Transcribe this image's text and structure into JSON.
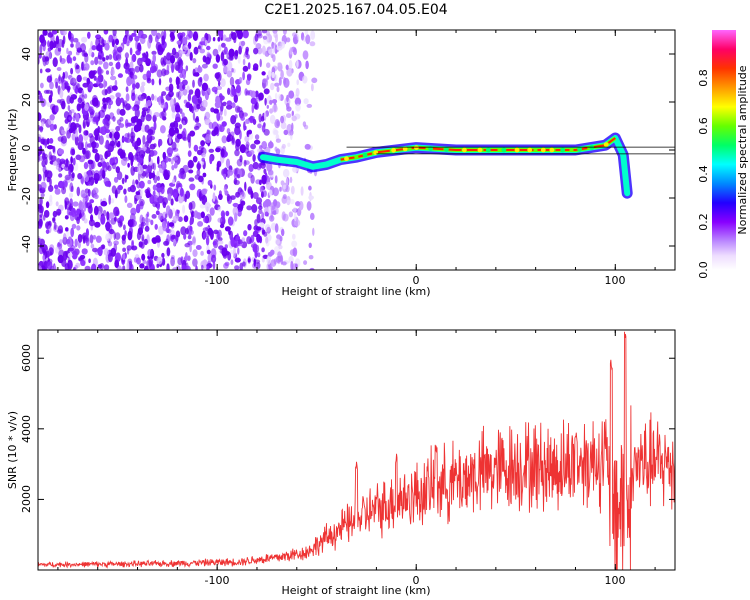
{
  "title": "C2E1.2025.167.04.05.E04",
  "colors": {
    "snr_line": "#ee3333",
    "tracking_line": "#000000",
    "colormap": [
      "#ff66ff",
      "#ff0066",
      "#ff3300",
      "#ff9900",
      "#ffff00",
      "#66ff00",
      "#00ff66",
      "#00ffff",
      "#0088ff",
      "#2200ff",
      "#8800ff",
      "#bb88ff",
      "#eeddff",
      "#ffffff"
    ]
  },
  "chart_data": [
    {
      "type": "heatmap",
      "xlabel": "Height of straight line (km)",
      "ylabel": "Frequency (Hz)",
      "xlim": [
        -190,
        130
      ],
      "ylim": [
        -50,
        50
      ],
      "xticks": [
        "-100",
        "0",
        "100"
      ],
      "yticks": [
        "40",
        "20",
        "0",
        "-20",
        "-40"
      ],
      "colorbar": {
        "label": "Normalized spectral amplitude",
        "range": [
          0,
          1
        ],
        "ticks": [
          "0.0",
          "0.2",
          "0.4",
          "0.6",
          "0.8"
        ]
      },
      "ridge_track": [
        {
          "x": -77,
          "y": -3
        },
        {
          "x": -70,
          "y": -4
        },
        {
          "x": -60,
          "y": -5
        },
        {
          "x": -52,
          "y": -7
        },
        {
          "x": -45,
          "y": -6
        },
        {
          "x": -38,
          "y": -4
        },
        {
          "x": -30,
          "y": -3
        },
        {
          "x": -20,
          "y": -1
        },
        {
          "x": -10,
          "y": 0
        },
        {
          "x": 0,
          "y": 1
        },
        {
          "x": 20,
          "y": 0
        },
        {
          "x": 50,
          "y": 0
        },
        {
          "x": 80,
          "y": 0
        },
        {
          "x": 95,
          "y": 2
        },
        {
          "x": 100,
          "y": 5
        },
        {
          "x": 104,
          "y": -2
        },
        {
          "x": 106,
          "y": -18
        }
      ]
    },
    {
      "type": "line",
      "xlabel": "Height of straight line (km)",
      "ylabel": "SNR (10 * v/v)",
      "xlim": [
        -190,
        130
      ],
      "ylim": [
        0,
        6800
      ],
      "xticks": [
        "-100",
        "0",
        "100"
      ],
      "yticks": [
        "6000",
        "4000",
        "2000"
      ],
      "series_envelope": [
        {
          "x": -190,
          "y": 150
        },
        {
          "x": -130,
          "y": 180
        },
        {
          "x": -90,
          "y": 230
        },
        {
          "x": -70,
          "y": 350
        },
        {
          "x": -55,
          "y": 500
        },
        {
          "x": -40,
          "y": 1100
        },
        {
          "x": -25,
          "y": 1600
        },
        {
          "x": -10,
          "y": 1950
        },
        {
          "x": 10,
          "y": 2350
        },
        {
          "x": 30,
          "y": 2700
        },
        {
          "x": 50,
          "y": 2950
        },
        {
          "x": 70,
          "y": 2900
        },
        {
          "x": 85,
          "y": 3100
        },
        {
          "x": 95,
          "y": 3200
        },
        {
          "x": 100,
          "y": 2000
        },
        {
          "x": 106,
          "y": 1500
        },
        {
          "x": 110,
          "y": 3000
        },
        {
          "x": 120,
          "y": 3000
        },
        {
          "x": 130,
          "y": 3000
        }
      ],
      "spikes": [
        {
          "x": 98,
          "y": 6000
        },
        {
          "x": 105,
          "y": 6800
        },
        {
          "x": -30,
          "y": 3100
        },
        {
          "x": -10,
          "y": 3300
        },
        {
          "x": 10,
          "y": 3600
        },
        {
          "x": 80,
          "y": 4000
        }
      ]
    }
  ]
}
